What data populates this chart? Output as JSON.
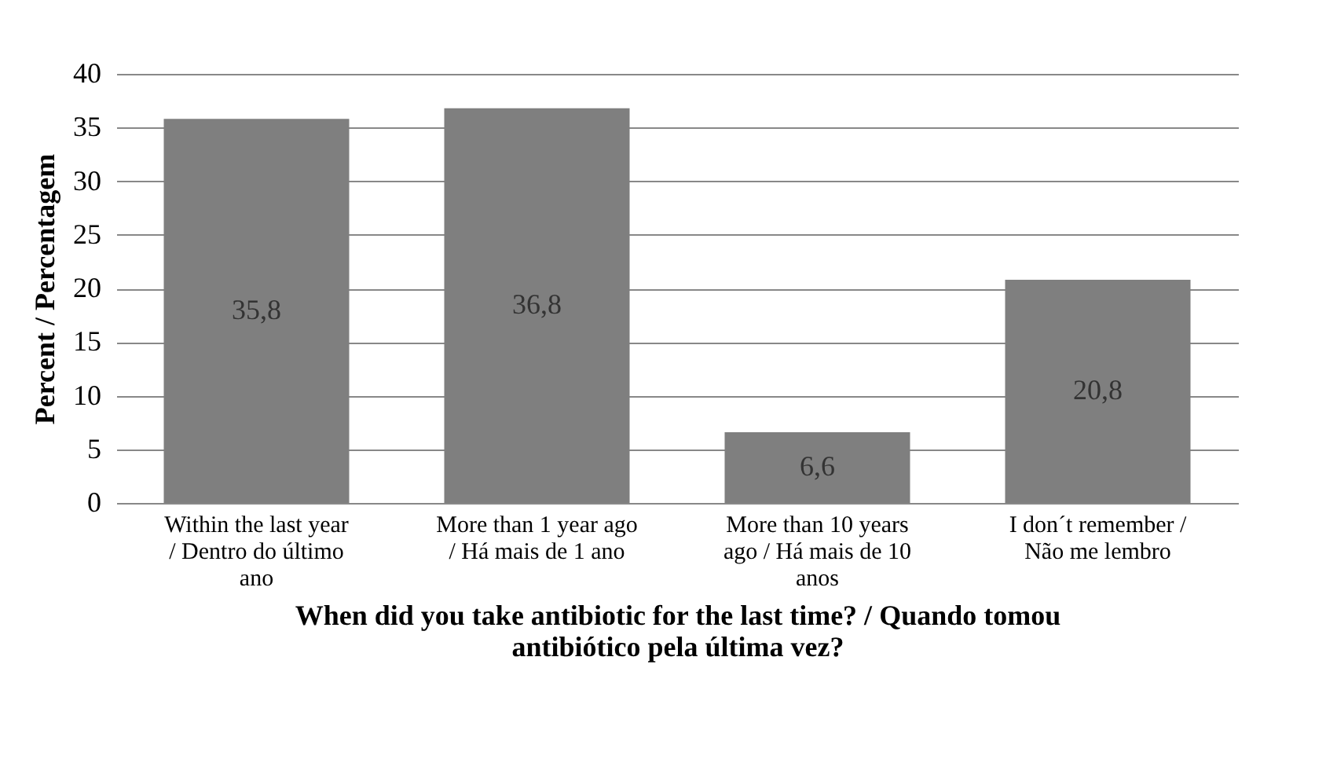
{
  "chart_data": {
    "type": "bar",
    "xlabel": "When did you take antibiotic for the last time? / Quando tomou antibiótico pela última vez?",
    "ylabel": "Percent / Percentagem",
    "categories": [
      "Within the last year / Dentro do último ano",
      "More than 1 year ago / Há mais de 1 ano",
      "More than 10 years ago / Há mais de 10 anos",
      "I don´t remember / Não me lembro"
    ],
    "values": [
      35.8,
      36.8,
      6.6,
      20.8
    ],
    "value_labels": [
      "35,8",
      "36,8",
      "6,6",
      "20,8"
    ],
    "color": "#7f7f7f",
    "ylim": [
      0,
      40
    ],
    "yticks": [
      0,
      5,
      10,
      15,
      20,
      25,
      30,
      35,
      40
    ],
    "grid": "y"
  }
}
